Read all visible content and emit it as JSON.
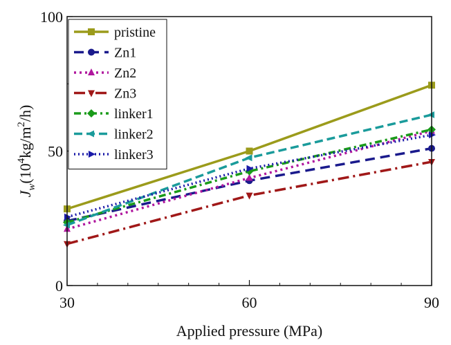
{
  "chart_data": {
    "type": "line",
    "title": "",
    "xlabel": "Applied pressure (MPa)",
    "ylabel": {
      "symbol": "J",
      "subscript": "w",
      "open": "(",
      "exp_base": "10",
      "exp": "4",
      "unit_mid": "kg/m",
      "unit_exp": "2",
      "unit_end": "/h)"
    },
    "xlim": [
      30,
      90
    ],
    "ylim": [
      0,
      100
    ],
    "x_ticks": [
      30,
      60,
      90
    ],
    "y_ticks": [
      0,
      50,
      100
    ],
    "x_tick_labels": [
      "30",
      "60",
      "90"
    ],
    "y_tick_labels": [
      "0",
      "50",
      "100"
    ],
    "legend_position": "top-left",
    "x": [
      30,
      60,
      90
    ],
    "series": [
      {
        "name": "pristine",
        "values": [
          28.5,
          50,
          74.5
        ],
        "color": "#9b9b1b",
        "dash": "",
        "marker": "square"
      },
      {
        "name": "Zn1",
        "values": [
          24,
          39,
          51
        ],
        "color": "#1a1a8c",
        "dash": "14,8",
        "marker": "circle"
      },
      {
        "name": "Zn2",
        "values": [
          21,
          40,
          57.5
        ],
        "color": "#b0179e",
        "dash": "3,5",
        "marker": "triangle-up"
      },
      {
        "name": "Zn3",
        "values": [
          15.5,
          33.5,
          46
        ],
        "color": "#a01818",
        "dash": "16,6,3,6",
        "marker": "triangle-down"
      },
      {
        "name": "linker1",
        "values": [
          23.5,
          42.5,
          58
        ],
        "color": "#1a9b1a",
        "dash": "10,5,3,5",
        "marker": "diamond"
      },
      {
        "name": "linker2",
        "values": [
          22.5,
          47.5,
          63.5
        ],
        "color": "#1a9b9b",
        "dash": "12,6",
        "marker": "triangle-left"
      },
      {
        "name": "linker3",
        "values": [
          25.5,
          43.5,
          56
        ],
        "color": "#1a1aa8",
        "dash": "2,4",
        "marker": "triangle-right"
      }
    ]
  }
}
